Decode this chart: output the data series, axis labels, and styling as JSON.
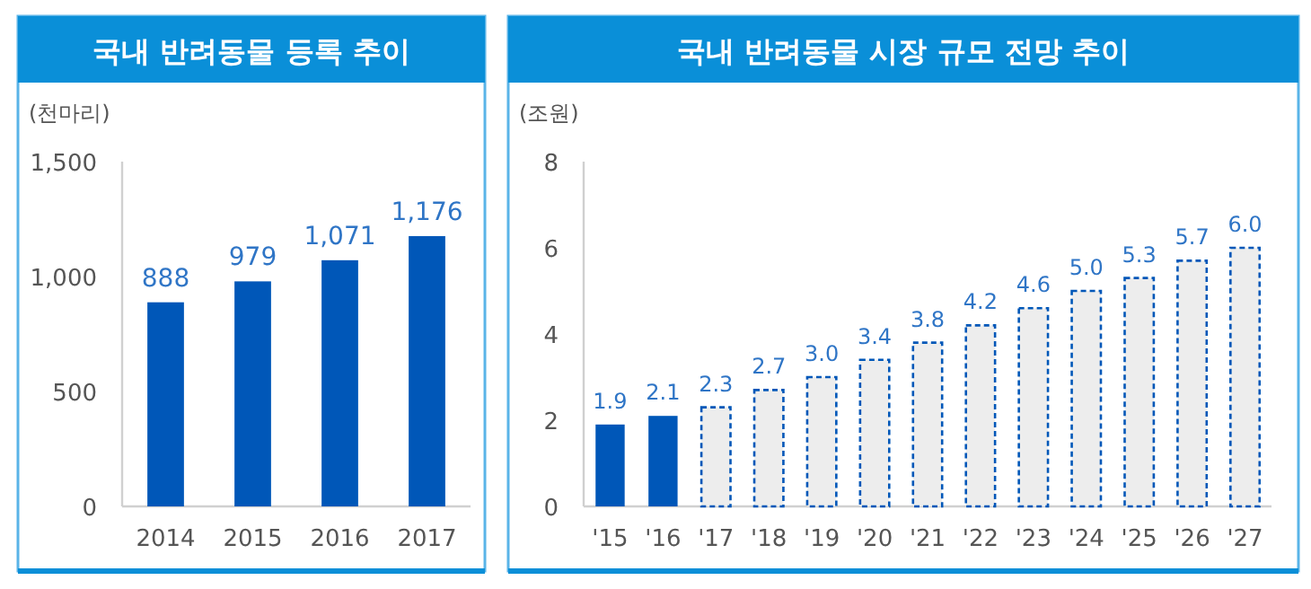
{
  "chart_data": [
    {
      "type": "bar",
      "title": "국내 반려동물 등록 추이",
      "ylabel": "(천마리)",
      "categories": [
        "2014",
        "2015",
        "2016",
        "2017"
      ],
      "series": [
        {
          "color": "#0057b8",
          "values": [
            888,
            979,
            1071,
            1176
          ],
          "value_labels": [
            "888",
            "979",
            "1,071",
            "1,176"
          ]
        }
      ],
      "ylim": [
        0,
        1500
      ],
      "yticks": [
        0,
        500,
        {
          "value": 1000,
          "label": "1,000"
        },
        {
          "value": 1500,
          "label": "1,500"
        }
      ],
      "grid": false
    },
    {
      "type": "bar",
      "title": "국내 반려동물 시장 규모 전망 추이",
      "ylabel": "(조원)",
      "categories": [
        "'15",
        "'16",
        "'17",
        "'18",
        "'19",
        "'20",
        "'21",
        "'22",
        "'23",
        "'24",
        "'25",
        "'26",
        "'27"
      ],
      "series": [
        {
          "color": "#0057b8",
          "values": [
            1.9,
            2.1,
            null,
            null,
            null,
            null,
            null,
            null,
            null,
            null,
            null,
            null,
            null
          ],
          "value_labels": [
            "1.9",
            "2.1",
            null,
            null,
            null,
            null,
            null,
            null,
            null,
            null,
            null,
            null,
            null
          ]
        },
        {
          "color": "#ededed",
          "line_style": "dashed",
          "values": [
            null,
            null,
            2.3,
            2.7,
            3.0,
            3.4,
            3.8,
            4.2,
            4.6,
            5.0,
            5.3,
            5.7,
            6.0
          ],
          "value_labels": [
            null,
            null,
            "2.3",
            "2.7",
            "3.0",
            "3.4",
            "3.8",
            "4.2",
            "4.6",
            "5.0",
            "5.3",
            "5.7",
            "6.0"
          ]
        }
      ],
      "ylim": [
        0,
        8
      ],
      "yticks": [
        0,
        2,
        4,
        6,
        8
      ],
      "grid": false
    }
  ]
}
